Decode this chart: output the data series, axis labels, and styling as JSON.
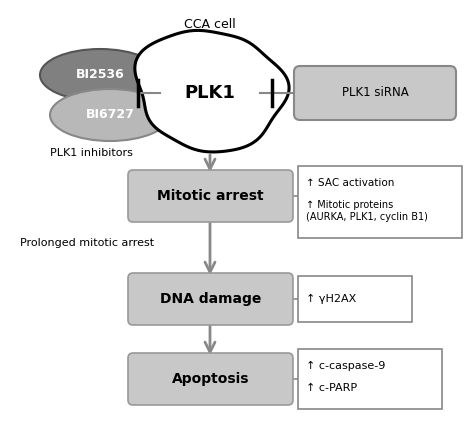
{
  "background_color": "#ffffff",
  "title": "CCA cell",
  "plk1_label": "PLK1",
  "bi2536_label": "BI2536",
  "bi6727_label": "BI6727",
  "plk1_inhibitors_label": "PLK1 inhibitors",
  "sirna_label": "PLK1 siRNA",
  "mitotic_label": "Mitotic arrest",
  "dna_label": "DNA damage",
  "apoptosis_label": "Apoptosis",
  "prolonged_label": "Prolonged mitotic arrest",
  "sac_label": "↑ SAC activation",
  "mitotic_proteins_label": "↑ Mitotic proteins\n(AURKA, PLK1, cyclin B1)",
  "yh2ax_label": "↑ γH2AX",
  "ccaspase_label": "↑ c-caspase-9",
  "cparp_label": "↑ c-PARP",
  "box_facecolor": "#c8c8c8",
  "box_edgecolor": "#999999",
  "ellipse_dark": "#808080",
  "ellipse_light": "#b8b8b8",
  "arrow_color": "#888888",
  "text_color": "#000000",
  "line_color": "#888888",
  "sirna_facecolor": "#c8c8c8",
  "white": "#ffffff"
}
